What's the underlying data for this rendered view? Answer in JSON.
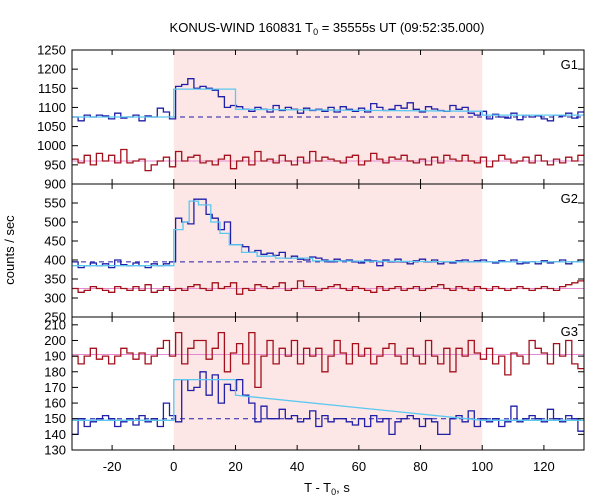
{
  "chart_data": {
    "type": "line",
    "title": "KONUS-WIND 160831 T",
    "title_sub": "0",
    "title_rest": " = 35555s UT (09:52:35.000)",
    "xlabel": "T - T",
    "xlabel_sub": "0",
    "xlabel_rest": ", s",
    "ylabel": "counts / sec",
    "xlim": [
      -33,
      133
    ],
    "xticks": [
      -20,
      0,
      20,
      40,
      60,
      80,
      100,
      120
    ],
    "shaded_interval": [
      0,
      100
    ],
    "colors": {
      "shade": "#fde6e6",
      "blue": "#1f1fa8",
      "red": "#a3101c",
      "cyan": "#5bc8f0",
      "pink": "#e58ad0"
    },
    "panels": [
      {
        "label": "G1",
        "ylim": [
          900,
          1250
        ],
        "yticks": [
          900,
          950,
          1000,
          1050,
          1100,
          1150,
          1200,
          1250
        ],
        "bg_level": 1075,
        "red_fit": 960,
        "blue_fit": {
          "x": [
            -33,
            0,
            0,
            20,
            20,
            100,
            100,
            133
          ],
          "y": [
            1075,
            1075,
            1148,
            1148,
            1095,
            1090,
            1080,
            1080
          ]
        },
        "blue": [
          1075,
          1065,
          1080,
          1075,
          1080,
          1078,
          1070,
          1085,
          1072,
          1075,
          1080,
          1065,
          1078,
          1075,
          1098,
          1088,
          1070,
          1155,
          1160,
          1175,
          1150,
          1155,
          1150,
          1145,
          1128,
          1100,
          1105,
          1102,
          1095,
          1090,
          1100,
          1095,
          1088,
          1105,
          1092,
          1100,
          1095,
          1085,
          1098,
          1092,
          1095,
          1090,
          1100,
          1088,
          1102,
          1095,
          1090,
          1098,
          1088,
          1110,
          1100,
          1092,
          1095,
          1105,
          1098,
          1112,
          1095,
          1088,
          1102,
          1096,
          1092,
          1090,
          1105,
          1095,
          1100,
          1085,
          1080,
          1090,
          1070,
          1082,
          1075,
          1072,
          1085,
          1068,
          1080,
          1075,
          1078,
          1070,
          1065,
          1080,
          1078,
          1085,
          1072,
          1088
        ],
        "red": [
          965,
          955,
          975,
          950,
          980,
          960,
          975,
          955,
          990,
          955,
          960,
          965,
          935,
          950,
          960,
          970,
          945,
          985,
          960,
          970,
          975,
          955,
          960,
          950,
          965,
          975,
          940,
          960,
          970,
          950,
          985,
          960,
          965,
          955,
          975,
          960,
          950,
          970,
          955,
          985,
          960,
          970,
          965,
          960,
          955,
          970,
          975,
          950,
          960,
          980,
          965,
          955,
          970,
          965,
          975,
          960,
          955,
          965,
          950,
          970,
          955,
          975,
          965,
          960,
          975,
          960,
          955,
          970,
          945,
          960,
          975,
          965,
          955,
          960,
          970,
          955,
          975,
          960,
          950,
          965,
          955,
          970,
          960,
          975
        ]
      },
      {
        "label": "G2",
        "ylim": [
          250,
          600
        ],
        "yticks": [
          250,
          300,
          350,
          400,
          450,
          500,
          550
        ],
        "bg_level": 395,
        "red_fit": 325,
        "blue_fit": {
          "x": [
            -33,
            0,
            0,
            3,
            3,
            5,
            5,
            8,
            8,
            12,
            12,
            15,
            15,
            18,
            18,
            22,
            22,
            27,
            27,
            33,
            33,
            45,
            45,
            100,
            100,
            133
          ],
          "y": [
            385,
            385,
            480,
            480,
            500,
            500,
            555,
            555,
            545,
            545,
            500,
            500,
            470,
            470,
            440,
            440,
            420,
            420,
            410,
            410,
            405,
            405,
            398,
            395,
            395,
            395
          ]
        },
        "blue": [
          395,
          380,
          385,
          392,
          385,
          390,
          380,
          400,
          388,
          385,
          392,
          385,
          380,
          390,
          385,
          390,
          395,
          510,
          500,
          495,
          560,
          560,
          520,
          510,
          480,
          500,
          440,
          440,
          435,
          420,
          425,
          415,
          418,
          412,
          420,
          405,
          410,
          402,
          400,
          408,
          405,
          400,
          395,
          402,
          398,
          400,
          395,
          392,
          400,
          398,
          385,
          400,
          395,
          402,
          395,
          390,
          398,
          402,
          395,
          400,
          390,
          395,
          392,
          398,
          400,
          395,
          398,
          400,
          395,
          392,
          398,
          395,
          400,
          390,
          392,
          395,
          390,
          398,
          392,
          395,
          400,
          390,
          395,
          400
        ],
        "red": [
          325,
          315,
          320,
          330,
          325,
          320,
          315,
          330,
          325,
          320,
          330,
          320,
          335,
          315,
          320,
          330,
          320,
          325,
          320,
          330,
          335,
          325,
          320,
          340,
          325,
          330,
          340,
          310,
          325,
          320,
          335,
          330,
          325,
          330,
          340,
          320,
          325,
          345,
          330,
          330,
          320,
          325,
          330,
          335,
          325,
          320,
          330,
          325,
          320,
          315,
          330,
          320,
          325,
          330,
          320,
          325,
          330,
          320,
          325,
          330,
          335,
          325,
          320,
          330,
          325,
          320,
          330,
          325,
          320,
          330,
          325,
          320,
          325,
          330,
          325,
          320,
          325,
          330,
          325,
          320,
          330,
          335,
          340,
          345
        ]
      },
      {
        "label": "G3",
        "ylim": [
          130,
          215
        ],
        "yticks": [
          130,
          140,
          150,
          160,
          170,
          180,
          190,
          200,
          210
        ],
        "bg_level": 150,
        "red_fit": 191,
        "blue_fit": {
          "x": [
            -33,
            0,
            0,
            20,
            20,
            100,
            100,
            133
          ],
          "y": [
            149,
            149,
            175,
            175,
            165,
            149,
            149,
            149
          ]
        },
        "blue": [
          140,
          150,
          145,
          148,
          150,
          152,
          150,
          145,
          148,
          150,
          146,
          152,
          148,
          150,
          145,
          160,
          152,
          148,
          175,
          168,
          170,
          180,
          165,
          178,
          160,
          172,
          168,
          175,
          165,
          160,
          148,
          158,
          150,
          150,
          156,
          150,
          152,
          148,
          150,
          155,
          145,
          152,
          148,
          150,
          150,
          148,
          146,
          150,
          145,
          152,
          148,
          150,
          140,
          148,
          150,
          152,
          150,
          145,
          150,
          148,
          140,
          140,
          150,
          152,
          148,
          155,
          145,
          150,
          148,
          150,
          145,
          148,
          158,
          148,
          150,
          152,
          150,
          148,
          156,
          150,
          148,
          152,
          150,
          142
        ],
        "red": [
          190,
          185,
          190,
          195,
          188,
          190,
          185,
          190,
          195,
          192,
          188,
          192,
          185,
          190,
          195,
          200,
          190,
          205,
          185,
          195,
          200,
          200,
          188,
          195,
          205,
          180,
          192,
          198,
          185,
          205,
          170,
          190,
          200,
          185,
          195,
          190,
          200,
          185,
          195,
          190,
          195,
          180,
          190,
          200,
          192,
          185,
          198,
          190,
          195,
          185,
          190,
          195,
          198,
          190,
          185,
          195,
          190,
          185,
          200,
          190,
          185,
          195,
          180,
          195,
          190,
          200,
          192,
          188,
          195,
          185,
          190,
          178,
          192,
          190,
          185,
          200,
          195,
          192,
          185,
          198,
          190,
          200,
          185,
          182
        ]
      }
    ]
  }
}
